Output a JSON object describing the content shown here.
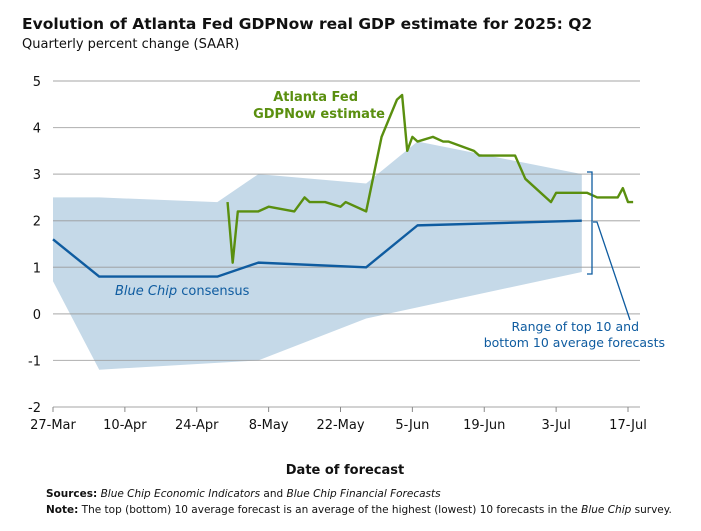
{
  "chart_data": {
    "type": "line",
    "title": "Evolution of Atlanta Fed GDPNow real GDP estimate for 2025: Q2",
    "subtitle": "Quarterly percent change (SAAR)",
    "xlabel": "Date of forecast",
    "ylabel": "",
    "x_unit": "days since 27-Mar",
    "xlim": [
      0,
      112
    ],
    "ylim": [
      -2,
      5
    ],
    "grid": true,
    "x_ticks": [
      {
        "day": 0,
        "label": "27-Mar"
      },
      {
        "day": 14,
        "label": "10-Apr"
      },
      {
        "day": 28,
        "label": "24-Apr"
      },
      {
        "day": 42,
        "label": "8-May"
      },
      {
        "day": 56,
        "label": "22-May"
      },
      {
        "day": 70,
        "label": "5-Jun"
      },
      {
        "day": 84,
        "label": "19-Jun"
      },
      {
        "day": 98,
        "label": "3-Jul"
      },
      {
        "day": 112,
        "label": "17-Jul"
      }
    ],
    "y_ticks": [
      5,
      4,
      3,
      2,
      1,
      0,
      -1,
      -2
    ],
    "series": [
      {
        "name": "Atlanta Fed GDPNow estimate",
        "color": "#5a8f0f",
        "x": [
          34,
          35,
          36,
          40,
          42,
          47,
          49,
          50,
          53,
          56,
          57,
          61,
          64,
          67,
          68,
          69,
          70,
          71,
          74,
          76,
          77,
          82,
          83,
          90,
          92,
          97,
          98,
          104,
          106,
          110,
          111,
          112,
          113
        ],
        "values": [
          2.4,
          1.1,
          2.2,
          2.2,
          2.3,
          2.2,
          2.5,
          2.4,
          2.4,
          2.3,
          2.4,
          2.2,
          3.8,
          4.6,
          4.7,
          3.5,
          3.8,
          3.7,
          3.8,
          3.7,
          3.7,
          3.5,
          3.4,
          3.4,
          2.9,
          2.4,
          2.6,
          2.6,
          2.5,
          2.5,
          2.7,
          2.4,
          2.4
        ]
      },
      {
        "name": "Blue Chip consensus",
        "color": "#0f5ca0",
        "x": [
          0,
          9,
          32,
          40,
          61,
          71,
          103
        ],
        "values": [
          1.6,
          0.8,
          0.8,
          1.1,
          1.0,
          1.9,
          2.0
        ]
      },
      {
        "name": "Range of top 10 and bottom 10 average forecasts",
        "color": "#c5d9e8",
        "type": "area",
        "upper": {
          "x": [
            0,
            9,
            32,
            40,
            61,
            71,
            103
          ],
          "values": [
            2.5,
            2.5,
            2.4,
            3.0,
            2.8,
            3.7,
            3.0
          ]
        },
        "lower": {
          "x": [
            0,
            9,
            40,
            61,
            103
          ],
          "values": [
            0.7,
            -1.2,
            -1.0,
            -0.1,
            0.9
          ]
        }
      }
    ],
    "annotations": {
      "gdpnow_line1": "Atlanta Fed",
      "gdpnow_line2": "GDPNow estimate",
      "bluechip_italic": "Blue Chip",
      "bluechip_rest": " consensus",
      "range_line1": "Range of top 10 and",
      "range_line2": "bottom 10 average forecasts"
    }
  },
  "footer": {
    "sources_label": "Sources:",
    "sources_italic1": "Blue Chip Economic Indicators",
    "sources_and": " and ",
    "sources_italic2": "Blue Chip Financial Forecasts",
    "note_label": "Note:",
    "note_text": " The top (bottom) 10 average forecast is an average of the highest (lowest) 10 forecasts in the ",
    "note_italic": "Blue Chip",
    "note_end": " survey."
  }
}
